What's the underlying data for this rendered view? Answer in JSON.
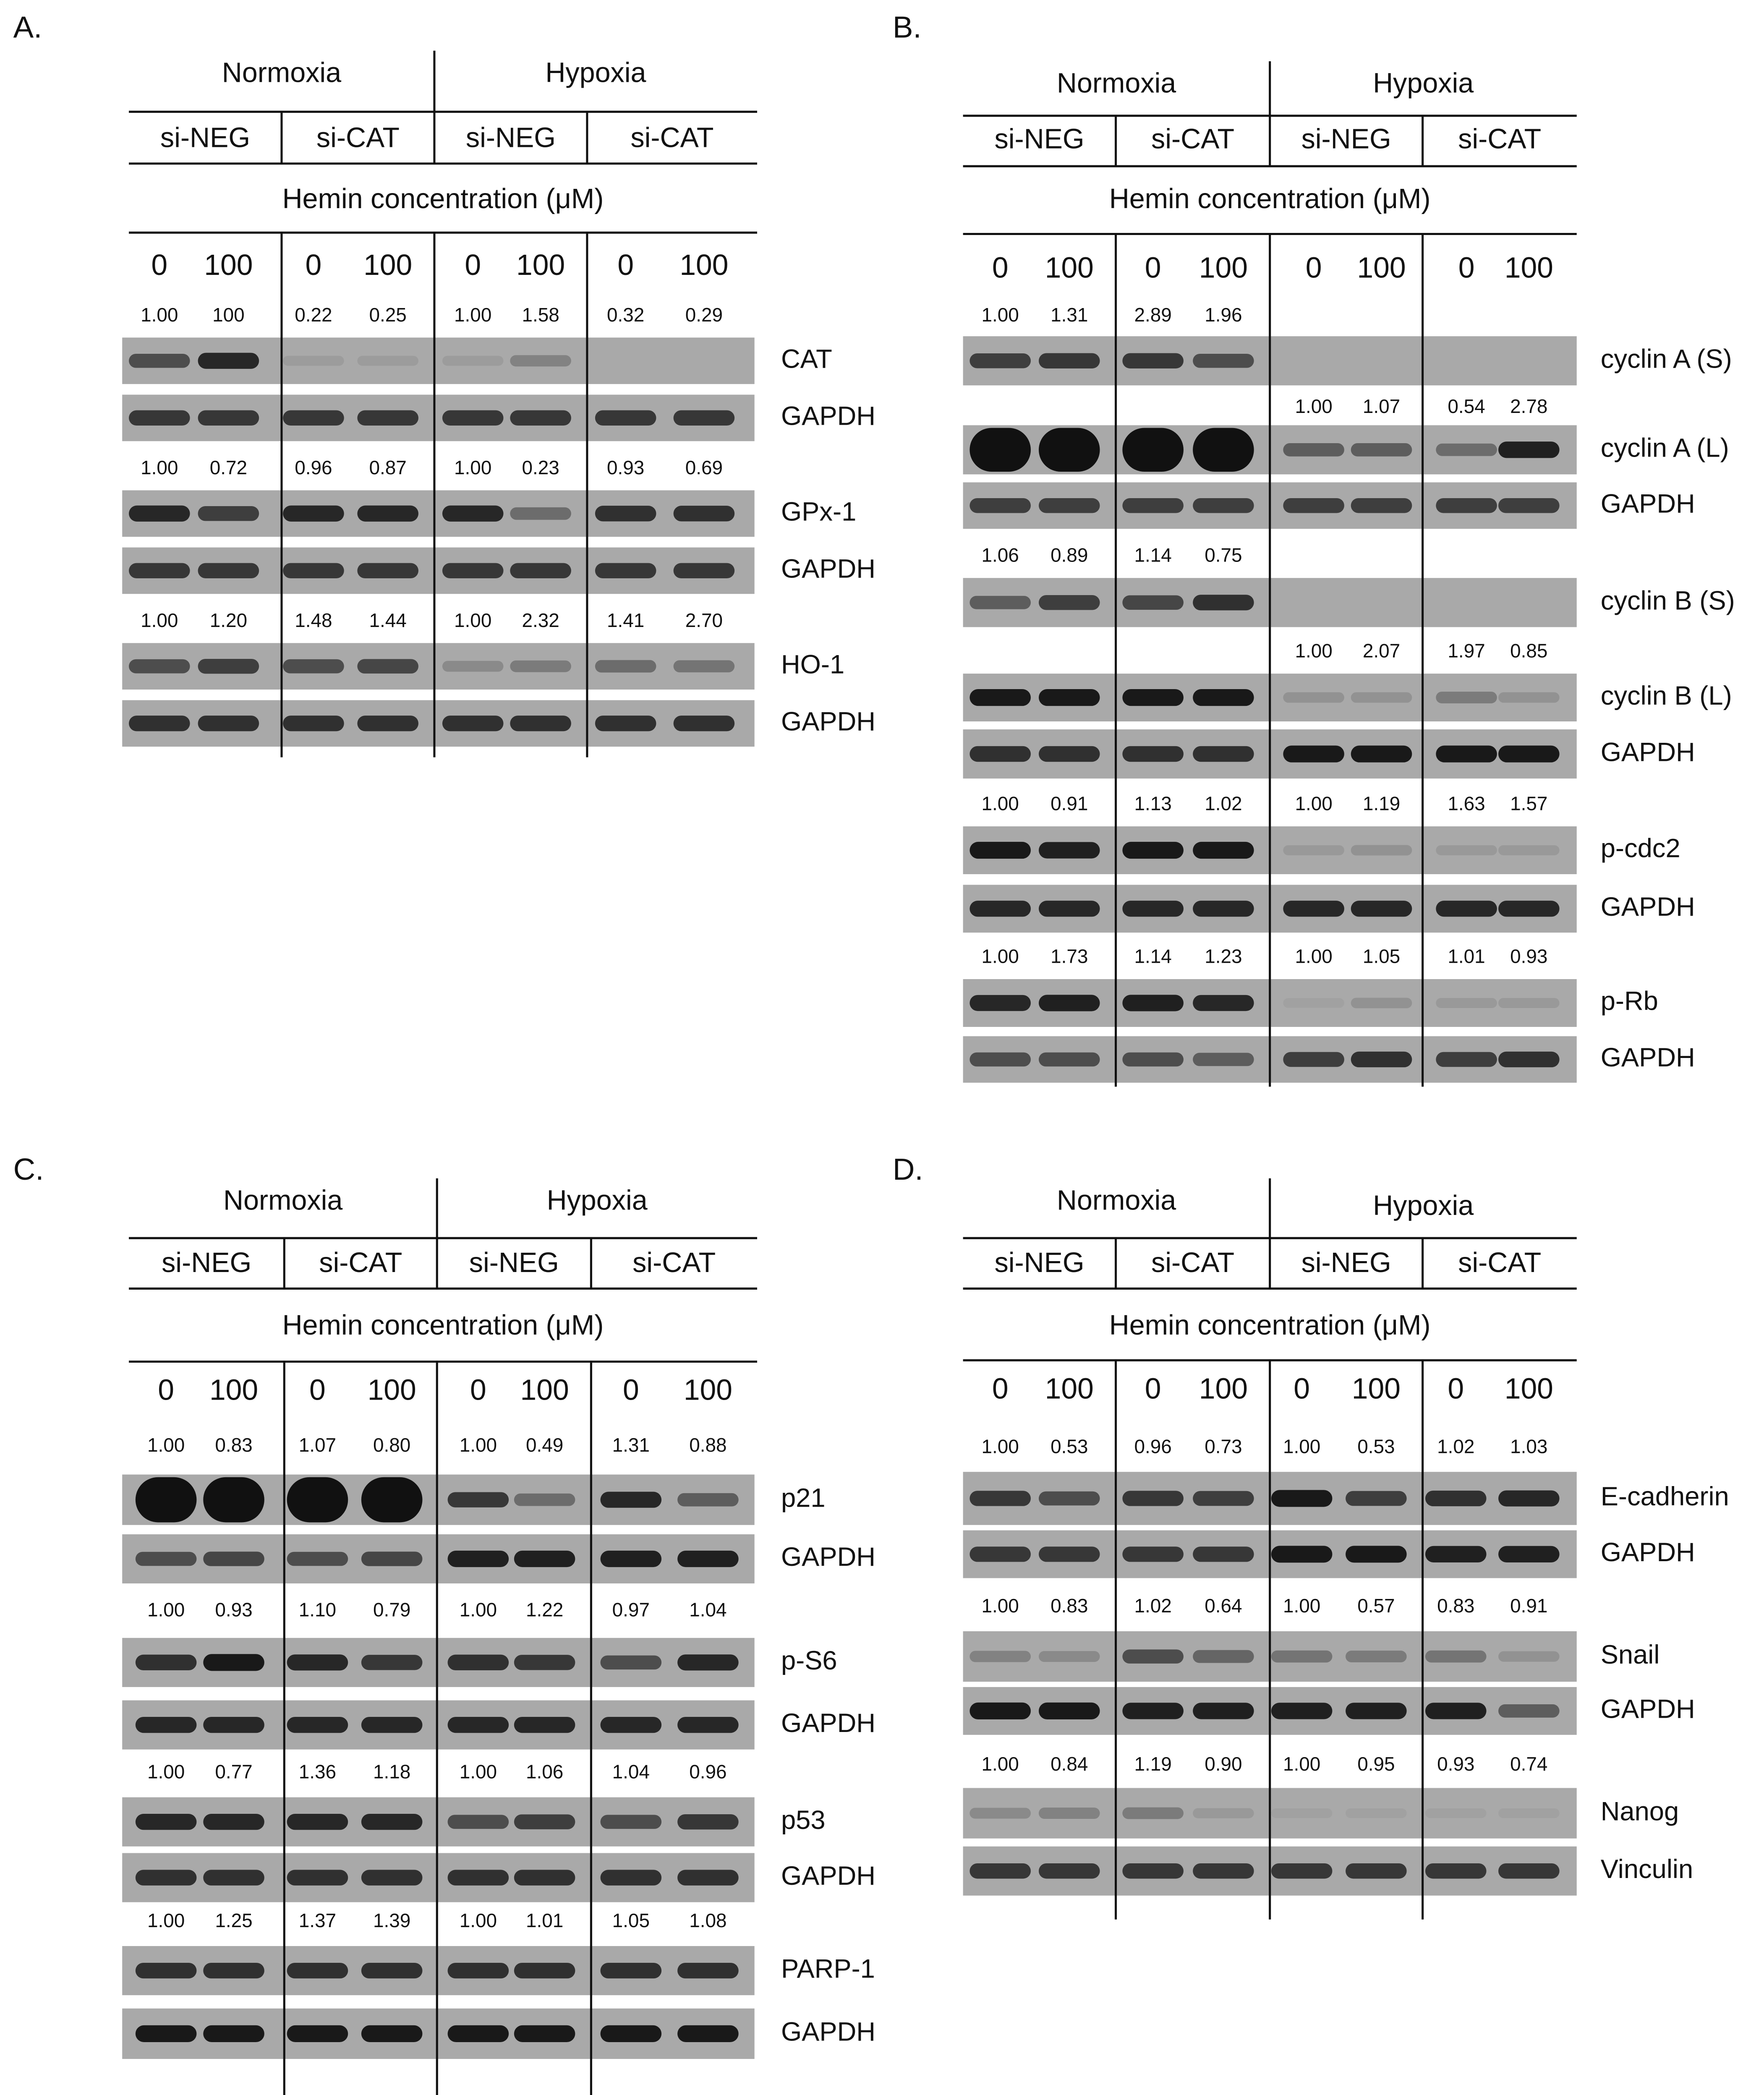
{
  "panels": [
    {
      "label": "A.",
      "conditions": [
        "Normoxia",
        "Hypoxia"
      ],
      "treatments": [
        "si-NEG",
        "si-CAT",
        "si-NEG",
        "si-CAT"
      ],
      "hemin_label": "Hemin concentration (μM)",
      "concentrations": [
        "0",
        "100",
        "0",
        "100",
        "0",
        "100",
        "0",
        "100"
      ],
      "rows": [
        {
          "values": [
            "1.00",
            "100",
            "0.22",
            "0.25",
            "1.00",
            "1.58",
            "0.32",
            "0.29"
          ]
        },
        {
          "label": "CAT"
        },
        {
          "label": "GAPDH"
        },
        {
          "values": [
            "1.00",
            "0.72",
            "0.96",
            "0.87",
            "1.00",
            "0.23",
            "0.93",
            "0.69"
          ]
        },
        {
          "label": "GPx-1"
        },
        {
          "label": "GAPDH"
        },
        {
          "values": [
            "1.00",
            "1.20",
            "1.48",
            "1.44",
            "1.00",
            "2.32",
            "1.41",
            "2.70"
          ]
        },
        {
          "label": "HO-1"
        },
        {
          "label": "GAPDH"
        }
      ]
    },
    {
      "label": "B.",
      "conditions": [
        "Normoxia",
        "Hypoxia"
      ],
      "treatments": [
        "si-NEG",
        "si-CAT",
        "si-NEG",
        "si-CAT"
      ],
      "hemin_label": "Hemin concentration (μM)",
      "concentrations": [
        "0",
        "100",
        "0",
        "100",
        "0",
        "100",
        "0",
        "100"
      ],
      "rows": [
        {
          "values": [
            "1.00",
            "1.31",
            "2.89",
            "1.96",
            null,
            null,
            null,
            null
          ]
        },
        {
          "label": "cyclin A (S)"
        },
        {
          "values": [
            null,
            null,
            null,
            null,
            "1.00",
            "1.07",
            "0.54",
            "2.78"
          ]
        },
        {
          "label": "cyclin A (L)"
        },
        {
          "label": "GAPDH"
        },
        {
          "values": [
            "1.06",
            "0.89",
            "1.14",
            "0.75",
            null,
            null,
            null,
            null
          ]
        },
        {
          "label": "cyclin B (S)"
        },
        {
          "values": [
            null,
            null,
            null,
            null,
            "1.00",
            "2.07",
            "1.97",
            "0.85"
          ]
        },
        {
          "label": "cyclin B (L)"
        },
        {
          "label": "GAPDH"
        },
        {
          "values": [
            "1.00",
            "0.91",
            "1.13",
            "1.02",
            "1.00",
            "1.19",
            "1.63",
            "1.57"
          ]
        },
        {
          "label": "p-cdc2"
        },
        {
          "label": "GAPDH"
        },
        {
          "values": [
            "1.00",
            "1.73",
            "1.14",
            "1.23",
            "1.00",
            "1.05",
            "1.01",
            "0.93"
          ]
        },
        {
          "label": "p-Rb"
        },
        {
          "label": "GAPDH"
        }
      ]
    },
    {
      "label": "C.",
      "conditions": [
        "Normoxia",
        "Hypoxia"
      ],
      "treatments": [
        "si-NEG",
        "si-CAT",
        "si-NEG",
        "si-CAT"
      ],
      "hemin_label": "Hemin concentration (μM)",
      "concentrations": [
        "0",
        "100",
        "0",
        "100",
        "0",
        "100",
        "0",
        "100"
      ],
      "rows": [
        {
          "values": [
            "1.00",
            "0.83",
            "1.07",
            "0.80",
            "1.00",
            "0.49",
            "1.31",
            "0.88"
          ]
        },
        {
          "label": "p21"
        },
        {
          "label": "GAPDH"
        },
        {
          "values": [
            "1.00",
            "0.93",
            "1.10",
            "0.79",
            "1.00",
            "1.22",
            "0.97",
            "1.04"
          ]
        },
        {
          "label": "p-S6"
        },
        {
          "label": "GAPDH"
        },
        {
          "values": [
            "1.00",
            "0.77",
            "1.36",
            "1.18",
            "1.00",
            "1.06",
            "1.04",
            "0.96"
          ]
        },
        {
          "label": "p53"
        },
        {
          "label": "GAPDH"
        },
        {
          "values": [
            "1.00",
            "1.25",
            "1.37",
            "1.39",
            "1.00",
            "1.01",
            "1.05",
            "1.08"
          ]
        },
        {
          "label": "PARP-1"
        },
        {
          "label": "GAPDH"
        }
      ]
    },
    {
      "label": "D.",
      "conditions": [
        "Normoxia",
        "Hypoxia"
      ],
      "treatments": [
        "si-NEG",
        "si-CAT",
        "si-NEG",
        "si-CAT"
      ],
      "hemin_label": "Hemin concentration (μM)",
      "concentrations": [
        "0",
        "100",
        "0",
        "100",
        "0",
        "100",
        "0",
        "100"
      ],
      "rows": [
        {
          "values": [
            "1.00",
            "0.53",
            "0.96",
            "0.73",
            "1.00",
            "0.53",
            "1.02",
            "1.03"
          ]
        },
        {
          "label": "E-cadherin"
        },
        {
          "label": "GAPDH"
        },
        {
          "values": [
            "1.00",
            "0.83",
            "1.02",
            "0.64",
            "1.00",
            "0.57",
            "0.83",
            "0.91"
          ]
        },
        {
          "label": "Snail"
        },
        {
          "label": "GAPDH"
        },
        {
          "values": [
            "1.00",
            "0.84",
            "1.19",
            "0.90",
            "1.00",
            "0.95",
            "0.93",
            "0.74"
          ]
        },
        {
          "label": "Nanog"
        },
        {
          "label": "Vinculin"
        }
      ]
    }
  ]
}
